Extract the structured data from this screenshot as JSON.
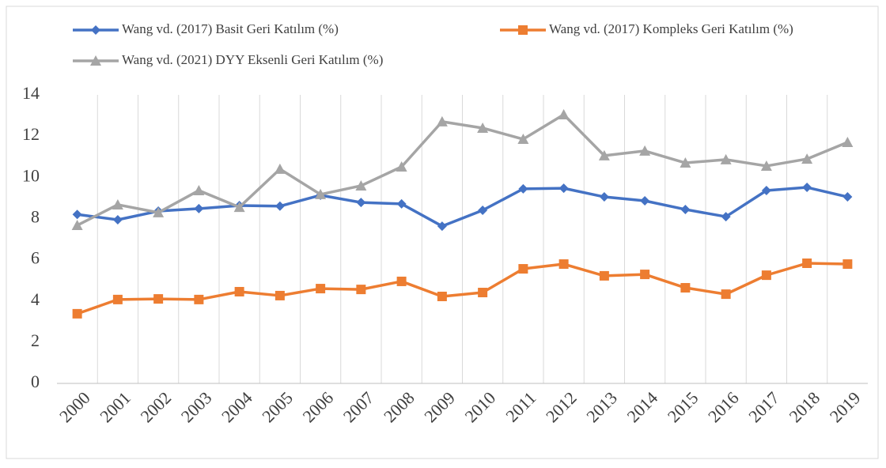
{
  "chart_data": {
    "type": "line",
    "categories": [
      "2000",
      "2001",
      "2002",
      "2003",
      "2004",
      "2005",
      "2006",
      "2007",
      "2008",
      "2009",
      "2010",
      "2011",
      "2012",
      "2013",
      "2014",
      "2015",
      "2016",
      "2017",
      "2018",
      "2019"
    ],
    "series": [
      {
        "name": "Wang vd. (2017) Basit Geri Katılım (%)",
        "color": "#4472c4",
        "marker": "diamond",
        "values": [
          8.2,
          7.94,
          8.36,
          8.48,
          8.63,
          8.6,
          9.13,
          8.78,
          8.71,
          7.63,
          8.4,
          9.44,
          9.47,
          9.05,
          8.86,
          8.44,
          8.09,
          9.36,
          9.51,
          9.05
        ]
      },
      {
        "name": "Wang vd. (2017) Kompleks Geri Katılım (%)",
        "color": "#ed7d31",
        "marker": "square",
        "values": [
          3.38,
          4.07,
          4.1,
          4.07,
          4.45,
          4.26,
          4.6,
          4.56,
          4.95,
          4.22,
          4.41,
          5.56,
          5.79,
          5.22,
          5.29,
          4.64,
          4.33,
          5.25,
          5.83,
          5.79
        ]
      },
      {
        "name": "Wang vd. (2021) DYY Eksenli Geri Katılım (%)",
        "color": "#a5a5a5",
        "marker": "triangle",
        "values": [
          7.67,
          8.67,
          8.29,
          9.36,
          8.55,
          10.4,
          9.17,
          9.59,
          10.51,
          12.7,
          12.39,
          11.85,
          13.04,
          11.05,
          11.28,
          10.7,
          10.86,
          10.55,
          10.89,
          11.7
        ]
      }
    ],
    "ylim": [
      0,
      14
    ],
    "yticks": [
      0,
      2,
      4,
      6,
      8,
      10,
      12,
      14
    ],
    "grid": "x",
    "legend": "top"
  }
}
